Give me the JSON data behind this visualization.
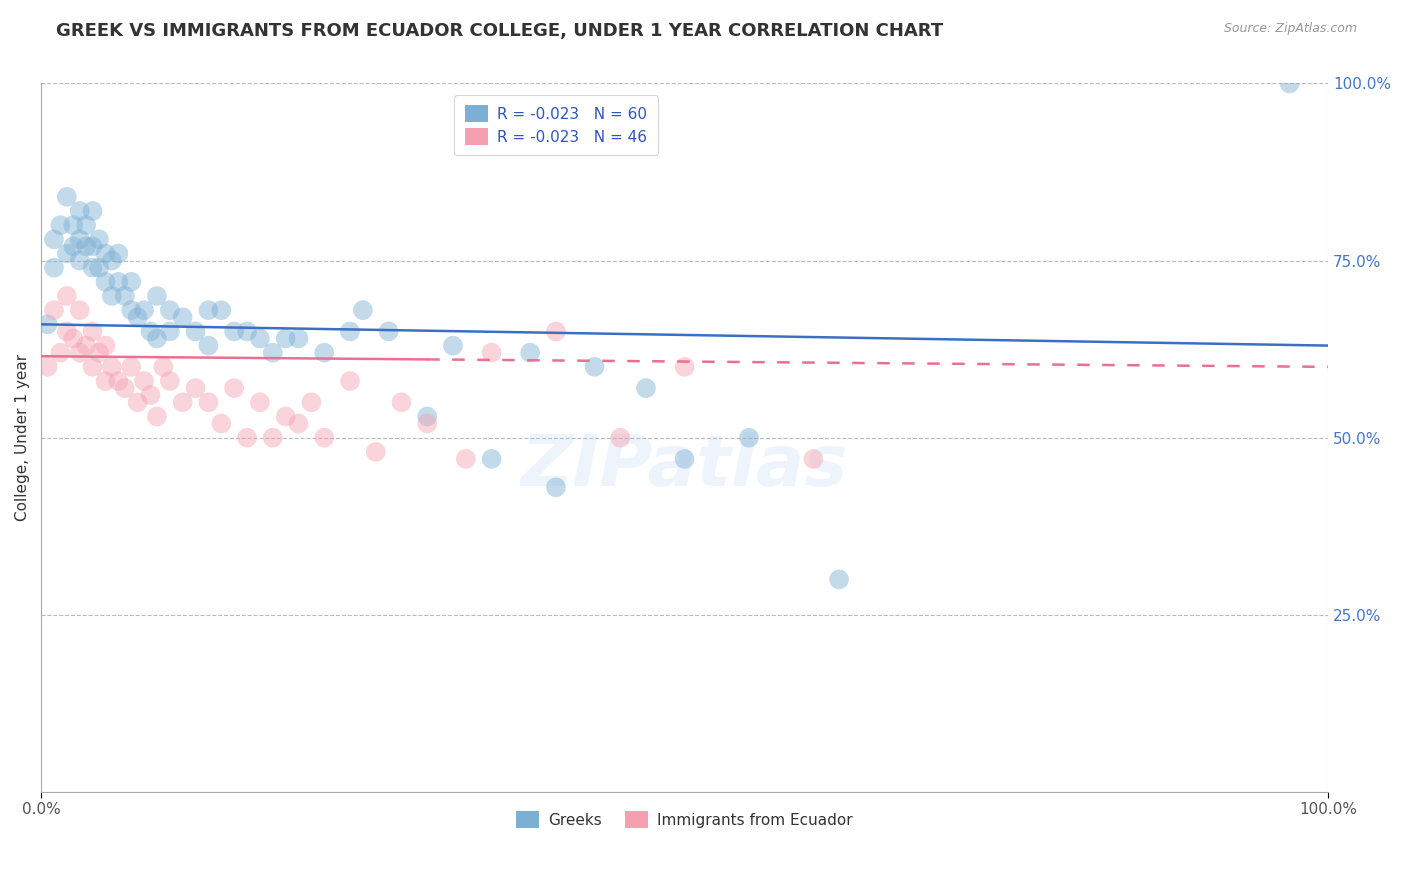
{
  "title": "GREEK VS IMMIGRANTS FROM ECUADOR COLLEGE, UNDER 1 YEAR CORRELATION CHART",
  "source": "Source: ZipAtlas.com",
  "ylabel": "College, Under 1 year",
  "xlim": [
    0.0,
    1.0
  ],
  "ylim": [
    0.0,
    1.0
  ],
  "y_tick_labels": [
    "25.0%",
    "50.0%",
    "75.0%",
    "100.0%"
  ],
  "y_tick_positions": [
    0.25,
    0.5,
    0.75,
    1.0
  ],
  "legend_entry1": "R = -0.023   N = 60",
  "legend_entry2": "R = -0.023   N = 46",
  "legend_label1": "Greeks",
  "legend_label2": "Immigrants from Ecuador",
  "blue_color": "#7BAFD4",
  "pink_color": "#F4A0B0",
  "blue_line_color": "#3B6FC4",
  "pink_line_color": "#E87090",
  "title_color": "#333333",
  "source_color": "#999999",
  "grid_color": "#BBBBBB",
  "background_color": "#FFFFFF",
  "watermark": "ZIPatlas",
  "blue_scatter_x": [
    0.005,
    0.01,
    0.01,
    0.015,
    0.02,
    0.02,
    0.025,
    0.025,
    0.03,
    0.03,
    0.03,
    0.035,
    0.035,
    0.04,
    0.04,
    0.04,
    0.045,
    0.045,
    0.05,
    0.05,
    0.055,
    0.055,
    0.06,
    0.06,
    0.065,
    0.07,
    0.07,
    0.075,
    0.08,
    0.085,
    0.09,
    0.09,
    0.1,
    0.1,
    0.11,
    0.12,
    0.13,
    0.13,
    0.14,
    0.15,
    0.16,
    0.17,
    0.18,
    0.19,
    0.2,
    0.22,
    0.24,
    0.25,
    0.27,
    0.3,
    0.32,
    0.35,
    0.38,
    0.4,
    0.43,
    0.47,
    0.5,
    0.55,
    0.62,
    0.97
  ],
  "blue_scatter_y": [
    0.66,
    0.78,
    0.74,
    0.8,
    0.76,
    0.84,
    0.77,
    0.8,
    0.75,
    0.78,
    0.82,
    0.77,
    0.8,
    0.74,
    0.77,
    0.82,
    0.74,
    0.78,
    0.72,
    0.76,
    0.7,
    0.75,
    0.72,
    0.76,
    0.7,
    0.68,
    0.72,
    0.67,
    0.68,
    0.65,
    0.64,
    0.7,
    0.65,
    0.68,
    0.67,
    0.65,
    0.68,
    0.63,
    0.68,
    0.65,
    0.65,
    0.64,
    0.62,
    0.64,
    0.64,
    0.62,
    0.65,
    0.68,
    0.65,
    0.53,
    0.63,
    0.47,
    0.62,
    0.43,
    0.6,
    0.57,
    0.47,
    0.5,
    0.3,
    1.0
  ],
  "pink_scatter_x": [
    0.005,
    0.01,
    0.015,
    0.02,
    0.02,
    0.025,
    0.03,
    0.03,
    0.035,
    0.04,
    0.04,
    0.045,
    0.05,
    0.05,
    0.055,
    0.06,
    0.065,
    0.07,
    0.075,
    0.08,
    0.085,
    0.09,
    0.095,
    0.1,
    0.11,
    0.12,
    0.13,
    0.14,
    0.15,
    0.16,
    0.17,
    0.18,
    0.19,
    0.2,
    0.21,
    0.22,
    0.24,
    0.26,
    0.28,
    0.3,
    0.33,
    0.35,
    0.4,
    0.45,
    0.5,
    0.6
  ],
  "pink_scatter_y": [
    0.6,
    0.68,
    0.62,
    0.65,
    0.7,
    0.64,
    0.62,
    0.68,
    0.63,
    0.6,
    0.65,
    0.62,
    0.58,
    0.63,
    0.6,
    0.58,
    0.57,
    0.6,
    0.55,
    0.58,
    0.56,
    0.53,
    0.6,
    0.58,
    0.55,
    0.57,
    0.55,
    0.52,
    0.57,
    0.5,
    0.55,
    0.5,
    0.53,
    0.52,
    0.55,
    0.5,
    0.58,
    0.48,
    0.55,
    0.52,
    0.47,
    0.62,
    0.65,
    0.5,
    0.6,
    0.47
  ],
  "blue_trend": [
    0.66,
    0.63
  ],
  "pink_trend_solid": [
    0.0,
    0.3
  ],
  "pink_trend_dashed": [
    0.3,
    1.0
  ],
  "pink_trend_y_at_0": 0.615,
  "pink_trend_y_at_1": 0.6,
  "marker_size": 200,
  "marker_alpha": 0.45,
  "title_fontsize": 13,
  "label_fontsize": 11,
  "tick_fontsize": 11
}
